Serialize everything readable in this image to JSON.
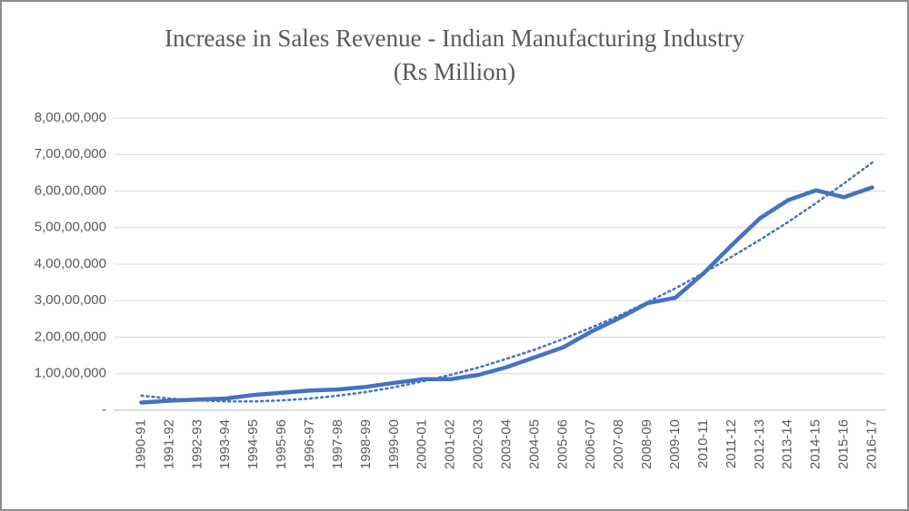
{
  "chart_data": {
    "type": "line",
    "title": "Increase in Sales Revenue - Indian Manufacturing Industry",
    "subtitle": "(Rs Million)",
    "categories": [
      "1990-91",
      "1991-92",
      "1992-93",
      "1993-94",
      "1994-95",
      "1995-96",
      "1996-97",
      "1997-98",
      "1998-99",
      "1999-00",
      "2000-01",
      "2001-02",
      "2002-03",
      "2003-04",
      "2004-05",
      "2005-06",
      "2006-07",
      "2007-08",
      "2008-09",
      "2009-10",
      "2010-11",
      "2011-12",
      "2012-13",
      "2013-14",
      "2014-15",
      "2015-16",
      "2016-17"
    ],
    "series": [
      {
        "color": "#4472c4",
        "style": "solid",
        "values": [
          2100000,
          2600000,
          2900000,
          3200000,
          4200000,
          4800000,
          5400000,
          5700000,
          6400000,
          7500000,
          8500000,
          8500000,
          9700000,
          11800000,
          14500000,
          17200000,
          21500000,
          25200000,
          29300000,
          30800000,
          37500000,
          45200000,
          52500000,
          57500000,
          60200000,
          58300000,
          61000000
        ]
      },
      {
        "color": "#4472c4",
        "style": "dotted",
        "values": [
          4000000,
          3200000,
          2700000,
          2400000,
          2400000,
          2700000,
          3200000,
          4000000,
          5000000,
          6300000,
          7900000,
          9700000,
          11700000,
          14100000,
          16600000,
          19500000,
          22600000,
          25900000,
          29600000,
          33400000,
          37600000,
          42000000,
          46600000,
          51500000,
          56700000,
          62100000,
          67800000
        ]
      }
    ],
    "ylim": [
      0,
      80000000
    ],
    "yticks": [
      {
        "value": 0,
        "label": "-"
      },
      {
        "value": 10000000,
        "label": "1,00,00,000"
      },
      {
        "value": 20000000,
        "label": "2,00,00,000"
      },
      {
        "value": 30000000,
        "label": "3,00,00,000"
      },
      {
        "value": 40000000,
        "label": "4,00,00,000"
      },
      {
        "value": 50000000,
        "label": "5,00,00,000"
      },
      {
        "value": 60000000,
        "label": "6,00,00,000"
      },
      {
        "value": 70000000,
        "label": "7,00,00,000"
      },
      {
        "value": 80000000,
        "label": "8,00,00,000"
      }
    ],
    "grid": true
  }
}
